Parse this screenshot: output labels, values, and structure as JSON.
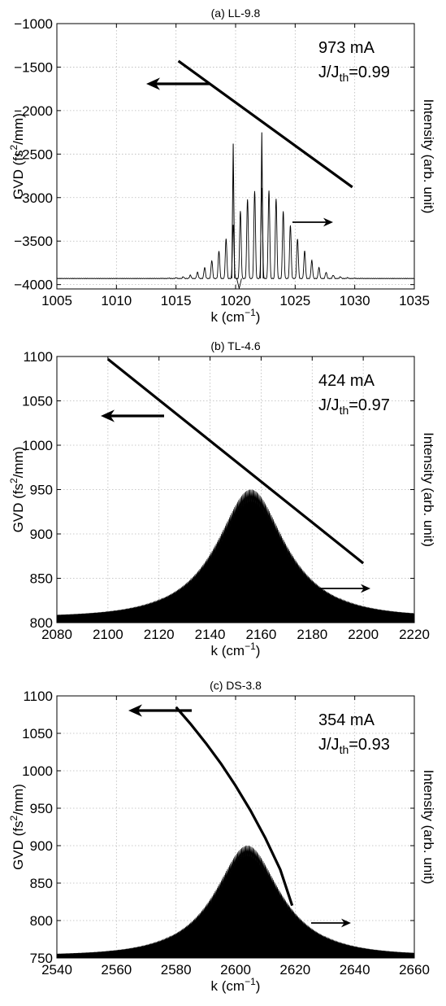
{
  "chart_data": [
    {
      "type": "line",
      "title": "(a) LL-9.8",
      "xlabel": "k (cm^-1)",
      "ylabel": "GVD (fs^2/mm)",
      "ylabel_right": "Intensity (arb. unit)",
      "xlim": [
        1005,
        1035
      ],
      "ylim": [
        -4050,
        -1000
      ],
      "xticks": [
        1005,
        1010,
        1015,
        1020,
        1025,
        1030,
        1035
      ],
      "yticks": [
        -4000,
        -3500,
        -3000,
        -2500,
        -2000,
        -1500,
        -1000
      ],
      "grid": true,
      "annotations": {
        "current": "973 mA",
        "ratio_value": "=0.99"
      },
      "gvd": {
        "x": [
          1015.2,
          1029.8
        ],
        "y": [
          -1430,
          -2880
        ]
      },
      "spectrum": {
        "kind": "comb",
        "center": 1022.2,
        "spacing": 0.6,
        "width": 3.3,
        "peak": -2250,
        "baseline": -3930,
        "x_range": [
          1005,
          1035
        ],
        "tall_lines": [
          {
            "x": 1019.8,
            "y": -2380
          },
          {
            "x": 1022.2,
            "y": -2250
          }
        ]
      }
    },
    {
      "type": "line",
      "title": "(b) TL-4.6",
      "xlabel": "k (cm^-1)",
      "ylabel": "GVD (fs^2/mm)",
      "ylabel_right": "Intensity (arb. unit)",
      "xlim": [
        2080,
        2220
      ],
      "ylim": [
        800,
        1100
      ],
      "xticks": [
        2080,
        2100,
        2120,
        2140,
        2160,
        2180,
        2200,
        2220
      ],
      "yticks": [
        800,
        850,
        900,
        950,
        1000,
        1050,
        1100
      ],
      "grid": true,
      "annotations": {
        "current": "424 mA",
        "ratio_value": "=0.97"
      },
      "gvd": {
        "x": [
          2100,
          2200
        ],
        "y": [
          1097,
          867
        ]
      },
      "spectrum": {
        "kind": "filled",
        "center": 2156,
        "width": 16,
        "peak": 950,
        "baseline": 805,
        "x_range": [
          2080,
          2220
        ]
      }
    },
    {
      "type": "line",
      "title": "(c) DS-3.8",
      "xlabel": "k (cm^-1)",
      "ylabel": "GVD (fs^2/mm)",
      "ylabel_right": "Intensity (arb. unit)",
      "xlim": [
        2540,
        2660
      ],
      "ylim": [
        750,
        1100
      ],
      "xticks": [
        2540,
        2560,
        2580,
        2600,
        2620,
        2640,
        2660
      ],
      "yticks": [
        750,
        800,
        850,
        900,
        950,
        1000,
        1050,
        1100
      ],
      "grid": true,
      "annotations": {
        "current": "354 mA",
        "ratio_value": "=0.93"
      },
      "gvd": {
        "x": [
          2580,
          2585,
          2590,
          2595,
          2600,
          2605,
          2610,
          2615,
          2619
        ],
        "y": [
          1085,
          1062,
          1037,
          1010,
          980,
          947,
          910,
          868,
          820
        ]
      },
      "spectrum": {
        "kind": "filled",
        "center": 2604,
        "width": 13,
        "peak": 900,
        "baseline": 752,
        "x_range": [
          2540,
          2660
        ]
      }
    }
  ]
}
